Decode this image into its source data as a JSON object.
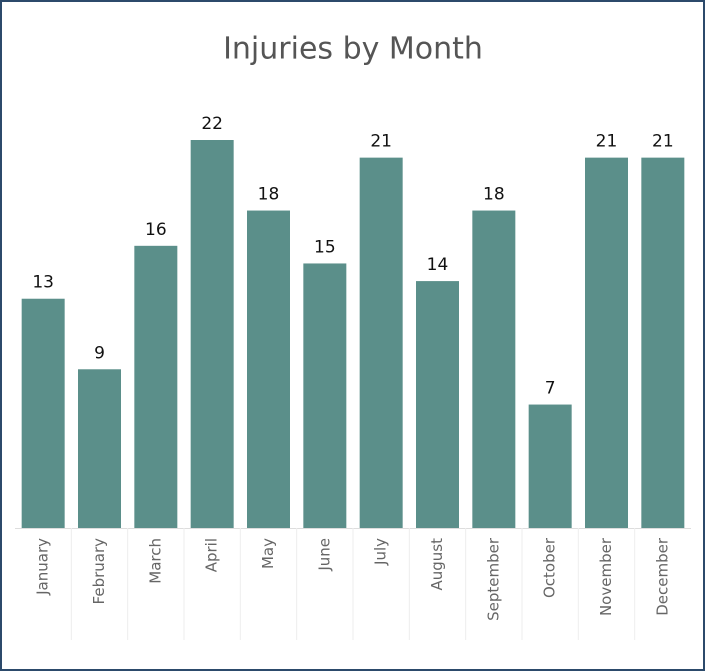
{
  "chart_data": {
    "type": "bar",
    "title": "Injuries by Month",
    "categories": [
      "January",
      "February",
      "March",
      "April",
      "May",
      "June",
      "July",
      "August",
      "September",
      "October",
      "November",
      "December"
    ],
    "values": [
      13,
      9,
      16,
      22,
      18,
      15,
      21,
      14,
      18,
      7,
      21,
      21
    ],
    "color": "#5b8f8a"
  }
}
